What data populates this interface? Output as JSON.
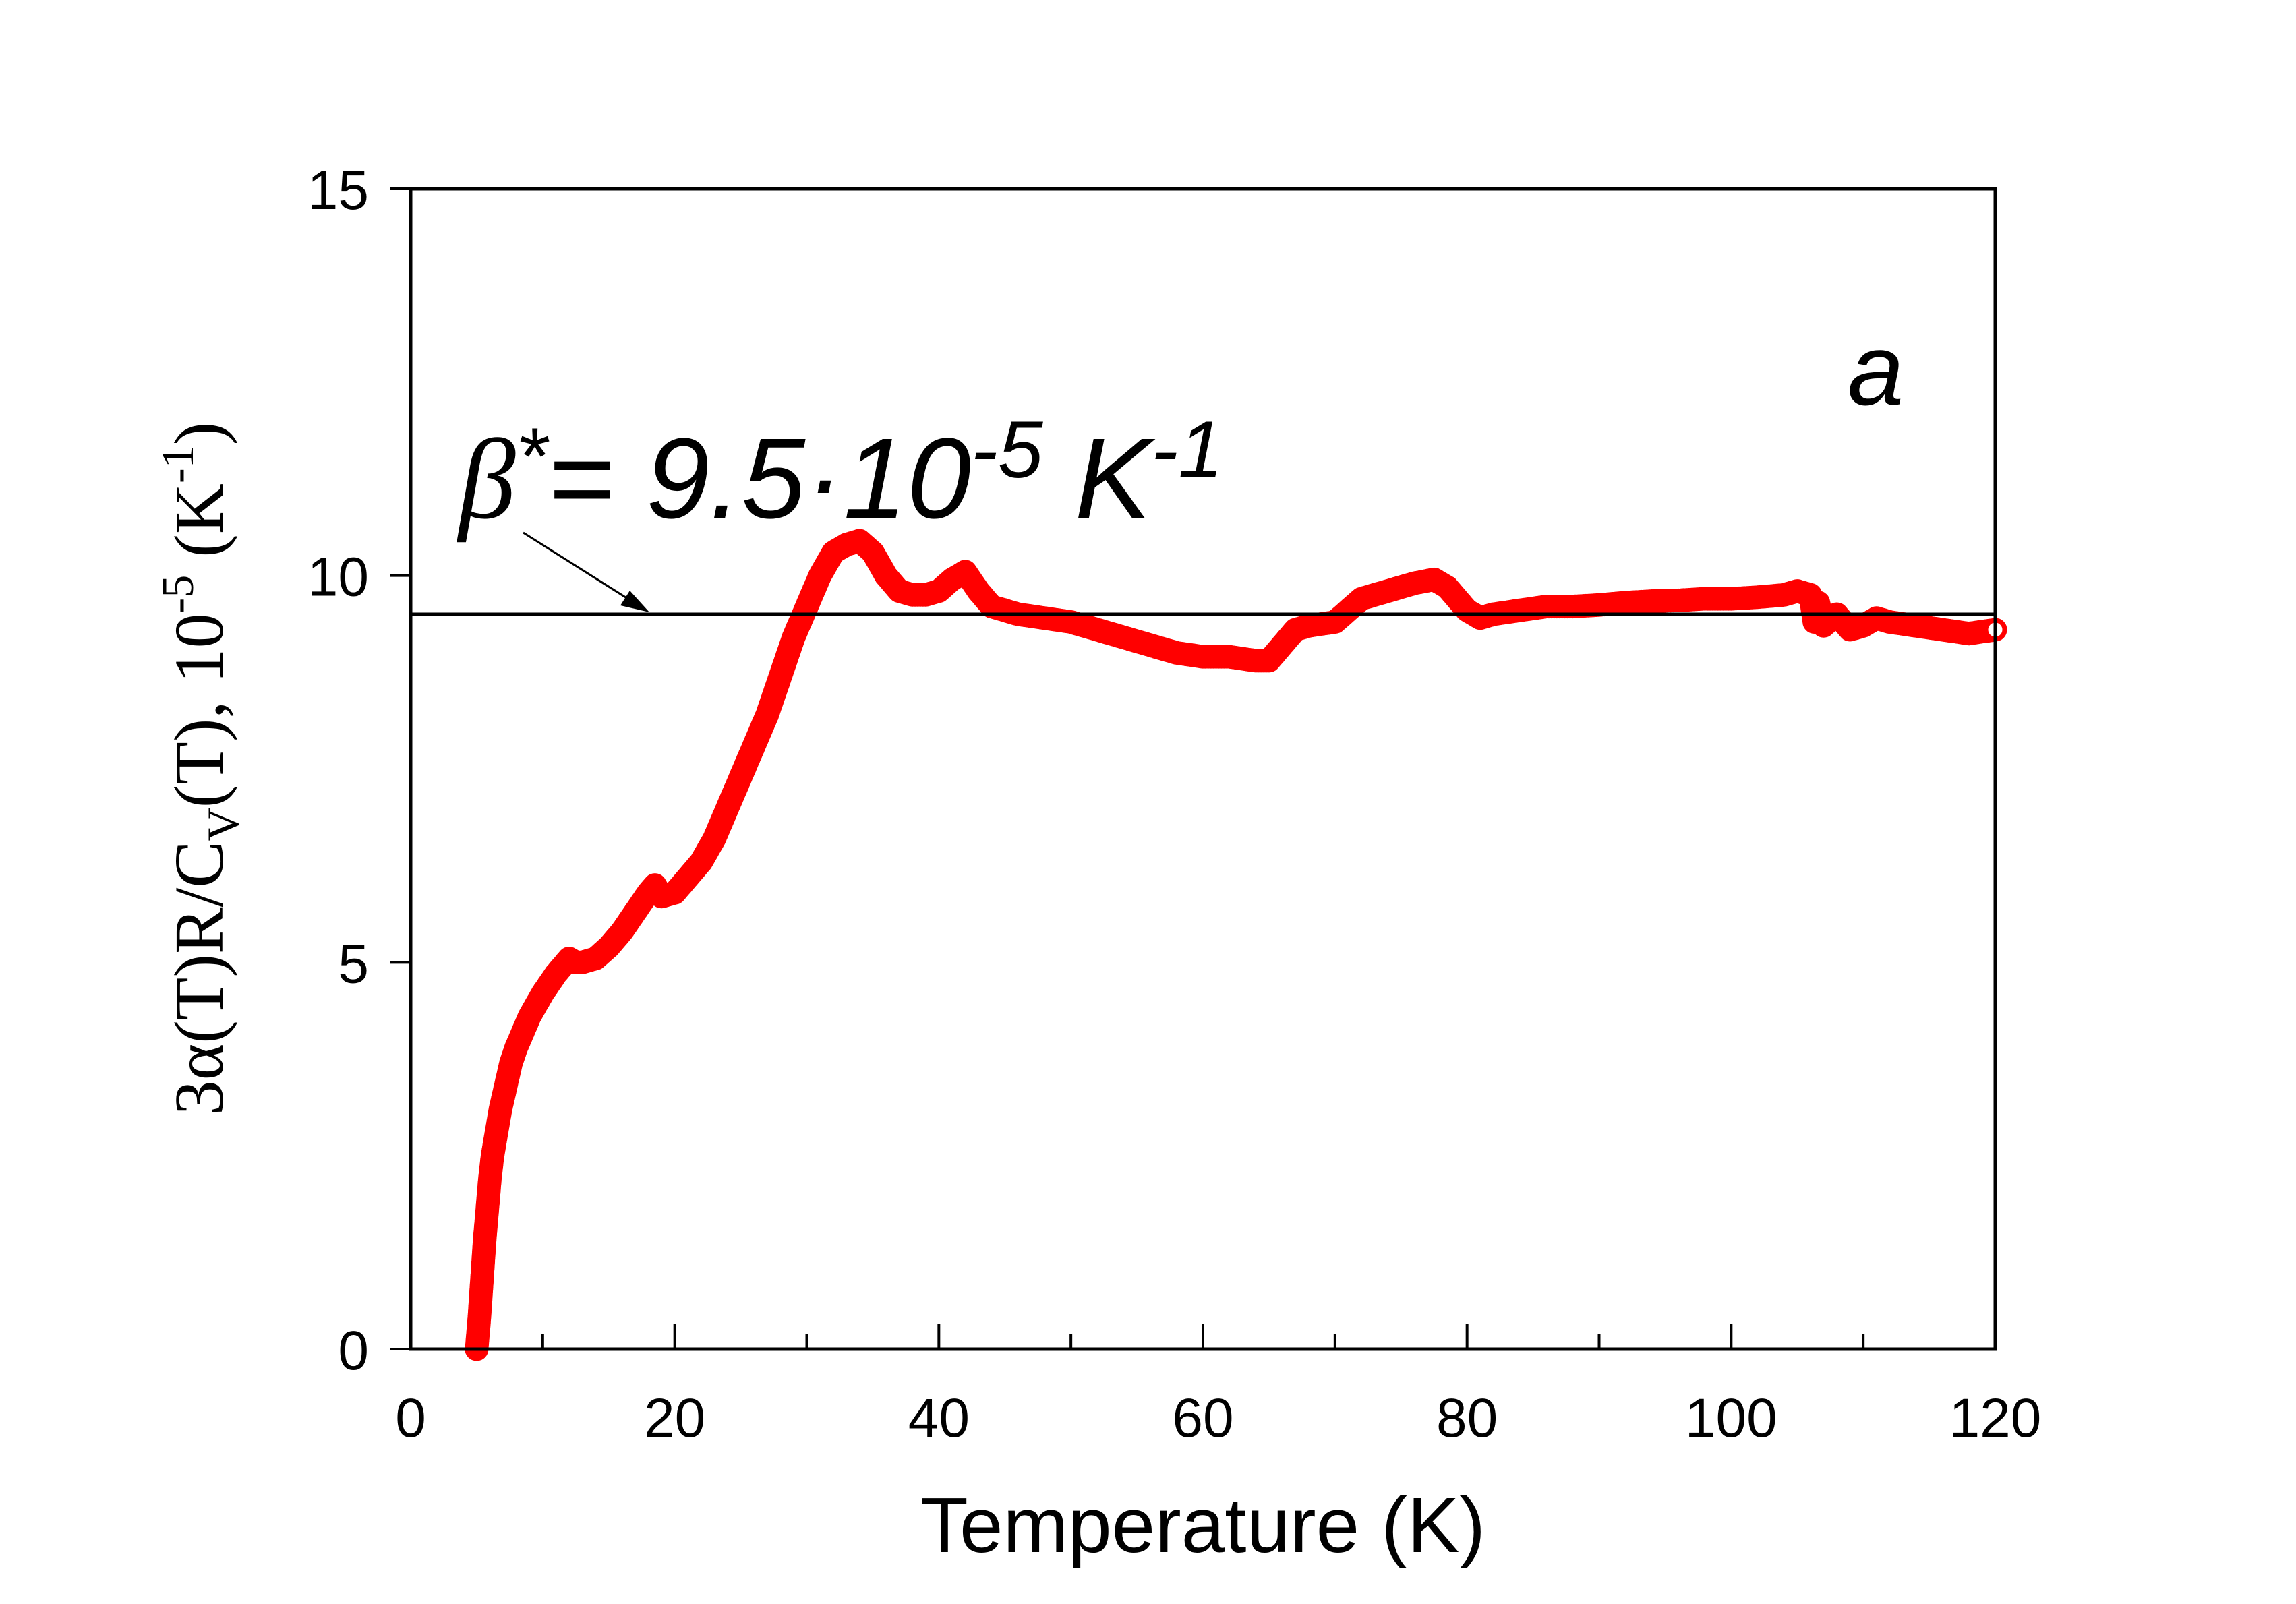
{
  "chart_data": {
    "type": "scatter",
    "xlabel": "Temperature (K)",
    "ylabel_parts": [
      "3α(T)R/C",
      "V",
      "(T), 10",
      "-5",
      " (K",
      "-1",
      ")"
    ],
    "xlim": [
      0,
      120
    ],
    "ylim": [
      0,
      15
    ],
    "x_ticks": [
      0,
      20,
      40,
      60,
      80,
      100,
      120
    ],
    "y_ticks": [
      0,
      5,
      10,
      15
    ],
    "x_minor_step": 10,
    "panel_label": "a",
    "reference_line": {
      "y": 9.5
    },
    "annotation": {
      "parts": [
        "β",
        "*",
        "= 9.5·10",
        "-5",
        " K",
        "-1"
      ],
      "arrow_target": {
        "x": 18,
        "y": 9.5
      }
    },
    "series": [
      {
        "name": "3α(T)R/C_V(T)",
        "color": "#ff0000",
        "x": [
          5.0,
          5.2,
          5.4,
          5.6,
          5.8,
          6.0,
          6.2,
          6.5,
          6.8,
          7.2,
          7.6,
          8.0,
          8.5,
          9.0,
          9.5,
          10.0,
          11.0,
          12.0,
          12.5,
          13.0,
          14.0,
          15.0,
          16.0,
          17.0,
          18.0,
          18.5,
          19.0,
          20.0,
          21.0,
          22.0,
          23.0,
          24.0,
          25.0,
          26.0,
          27.0,
          28.0,
          29.0,
          30.0,
          31.0,
          32.0,
          33.0,
          34.0,
          35.0,
          36.0,
          37.0,
          38.0,
          39.0,
          40.0,
          41.0,
          42.0,
          43.0,
          44.0,
          45.0,
          46.0,
          48.0,
          50.0,
          52.0,
          54.0,
          56.0,
          58.0,
          60.0,
          62.0,
          64.0,
          65.0,
          66.0,
          67.0,
          68.0,
          70.0,
          72.0,
          74.0,
          76.0,
          77.5,
          78.5,
          80.0,
          81.0,
          82.0,
          84.0,
          86.0,
          88.0,
          90.0,
          92.0,
          94.0,
          96.0,
          98.0,
          100.0,
          102.0,
          104.0,
          105.0,
          106.0,
          106.3,
          106.6,
          107.0,
          108.0,
          109.0,
          110.0,
          111.0,
          112.0,
          114.0,
          116.0,
          118.0,
          120.0
        ],
        "y": [
          0.0,
          0.4,
          0.9,
          1.4,
          1.8,
          2.2,
          2.5,
          2.8,
          3.1,
          3.4,
          3.7,
          3.9,
          4.1,
          4.3,
          4.45,
          4.6,
          4.85,
          5.05,
          5.0,
          5.0,
          5.05,
          5.2,
          5.4,
          5.65,
          5.9,
          6.0,
          5.85,
          5.9,
          6.1,
          6.3,
          6.6,
          7.0,
          7.4,
          7.8,
          8.2,
          8.7,
          9.2,
          9.6,
          10.0,
          10.3,
          10.4,
          10.45,
          10.3,
          10.0,
          9.8,
          9.75,
          9.75,
          9.8,
          9.95,
          10.05,
          9.8,
          9.6,
          9.55,
          9.5,
          9.45,
          9.4,
          9.3,
          9.2,
          9.1,
          9.0,
          8.95,
          8.95,
          8.9,
          8.9,
          9.1,
          9.3,
          9.35,
          9.4,
          9.7,
          9.8,
          9.9,
          9.95,
          9.85,
          9.55,
          9.45,
          9.5,
          9.55,
          9.6,
          9.6,
          9.62,
          9.65,
          9.67,
          9.68,
          9.7,
          9.7,
          9.72,
          9.75,
          9.8,
          9.75,
          9.4,
          9.65,
          9.35,
          9.5,
          9.3,
          9.35,
          9.45,
          9.4,
          9.35,
          9.3,
          9.25,
          9.3
        ]
      }
    ]
  }
}
